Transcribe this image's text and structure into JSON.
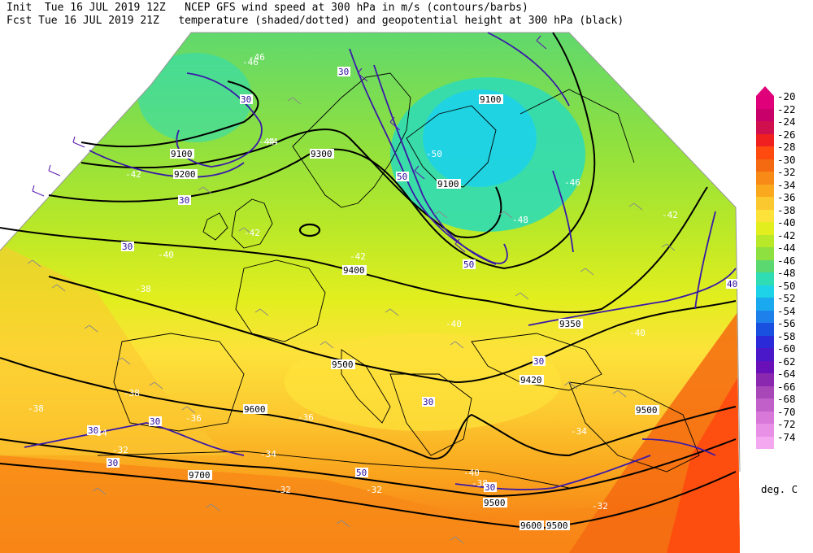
{
  "header": {
    "line1": "Init  Tue 16 JUL 2019 12Z   NCEP GFS wind speed at 300 hPa in m/s (contours/barbs)",
    "line2": "Fcst Tue 16 JUL 2019 21Z   temperature (shaded/dotted) and geopotential height at 300 hPa (black)"
  },
  "colorbar": {
    "unit": "deg. C",
    "entries": [
      {
        "label": "-20",
        "color": "#e0007a"
      },
      {
        "label": "-22",
        "color": "#c8006a"
      },
      {
        "label": "-24",
        "color": "#d0104e"
      },
      {
        "label": "-26",
        "color": "#f02020"
      },
      {
        "label": "-28",
        "color": "#ff4a10"
      },
      {
        "label": "-30",
        "color": "#f46a10"
      },
      {
        "label": "-32",
        "color": "#f88a18"
      },
      {
        "label": "-34",
        "color": "#faa81e"
      },
      {
        "label": "-36",
        "color": "#fcc830"
      },
      {
        "label": "-38",
        "color": "#fde23a"
      },
      {
        "label": "-40",
        "color": "#e2ee1e"
      },
      {
        "label": "-42",
        "color": "#b8e828"
      },
      {
        "label": "-44",
        "color": "#8ee040"
      },
      {
        "label": "-46",
        "color": "#5cd870"
      },
      {
        "label": "-48",
        "color": "#30dcb4"
      },
      {
        "label": "-50",
        "color": "#1ed2e8"
      },
      {
        "label": "-52",
        "color": "#1aa8ee"
      },
      {
        "label": "-54",
        "color": "#1e80ea"
      },
      {
        "label": "-56",
        "color": "#1a50e0"
      },
      {
        "label": "-58",
        "color": "#2a2ad8"
      },
      {
        "label": "-60",
        "color": "#4a18c8"
      },
      {
        "label": "-62",
        "color": "#6a10b8"
      },
      {
        "label": "-64",
        "color": "#8a28b0"
      },
      {
        "label": "-66",
        "color": "#a848b8"
      },
      {
        "label": "-68",
        "color": "#c060c8"
      },
      {
        "label": "-70",
        "color": "#d878d8"
      },
      {
        "label": "-72",
        "color": "#e890e6"
      },
      {
        "label": "-74",
        "color": "#f4a8f0"
      }
    ]
  },
  "map": {
    "height_labels": [
      "9100",
      "9100",
      "9100",
      "9200",
      "9300",
      "9400",
      "9350",
      "9420",
      "9500",
      "9500",
      "9600",
      "9500",
      "9700",
      "9500",
      "9600"
    ],
    "wind_labels": [
      "30",
      "30",
      "30",
      "30",
      "30",
      "30",
      "30",
      "30",
      "30",
      "30",
      "40",
      "50",
      "50",
      "50"
    ],
    "temp_labels": [
      "-46",
      "-44",
      "-42",
      "-42",
      "-40",
      "-40",
      "-38",
      "-38",
      "-38",
      "-36",
      "-36",
      "-34",
      "-34",
      "-32",
      "-32",
      "-32",
      "-32",
      "-50",
      "-48",
      "-46",
      "-46",
      "-44",
      "-42",
      "-42",
      "-40",
      "-40",
      "-38",
      "-34"
    ]
  }
}
